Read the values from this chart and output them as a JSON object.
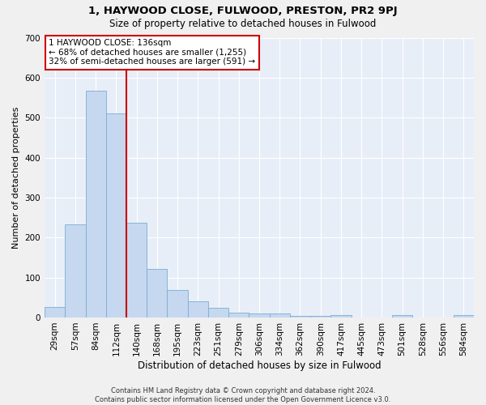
{
  "title": "1, HAYWOOD CLOSE, FULWOOD, PRESTON, PR2 9PJ",
  "subtitle": "Size of property relative to detached houses in Fulwood",
  "xlabel": "Distribution of detached houses by size in Fulwood",
  "ylabel": "Number of detached properties",
  "footer": "Contains HM Land Registry data © Crown copyright and database right 2024.\nContains public sector information licensed under the Open Government Licence v3.0.",
  "bar_color": "#c5d8ef",
  "bar_edge_color": "#7aadd4",
  "background_color": "#e8eef8",
  "grid_color": "#ffffff",
  "vline_color": "#cc0000",
  "annotation_text": "1 HAYWOOD CLOSE: 136sqm\n← 68% of detached houses are smaller (1,255)\n32% of semi-detached houses are larger (591) →",
  "annotation_box_color": "#ffffff",
  "annotation_box_edge": "#cc0000",
  "categories": [
    "29sqm",
    "57sqm",
    "84sqm",
    "112sqm",
    "140sqm",
    "168sqm",
    "195sqm",
    "223sqm",
    "251sqm",
    "279sqm",
    "306sqm",
    "334sqm",
    "362sqm",
    "390sqm",
    "417sqm",
    "445sqm",
    "473sqm",
    "501sqm",
    "528sqm",
    "556sqm",
    "584sqm"
  ],
  "values": [
    27,
    232,
    568,
    510,
    238,
    121,
    68,
    40,
    25,
    13,
    10,
    10,
    3,
    3,
    5,
    0,
    0,
    6,
    0,
    0,
    5
  ],
  "ylim": [
    0,
    700
  ],
  "yticks": [
    0,
    100,
    200,
    300,
    400,
    500,
    600,
    700
  ],
  "fig_width": 6.0,
  "fig_height": 5.0,
  "fig_dpi": 100
}
